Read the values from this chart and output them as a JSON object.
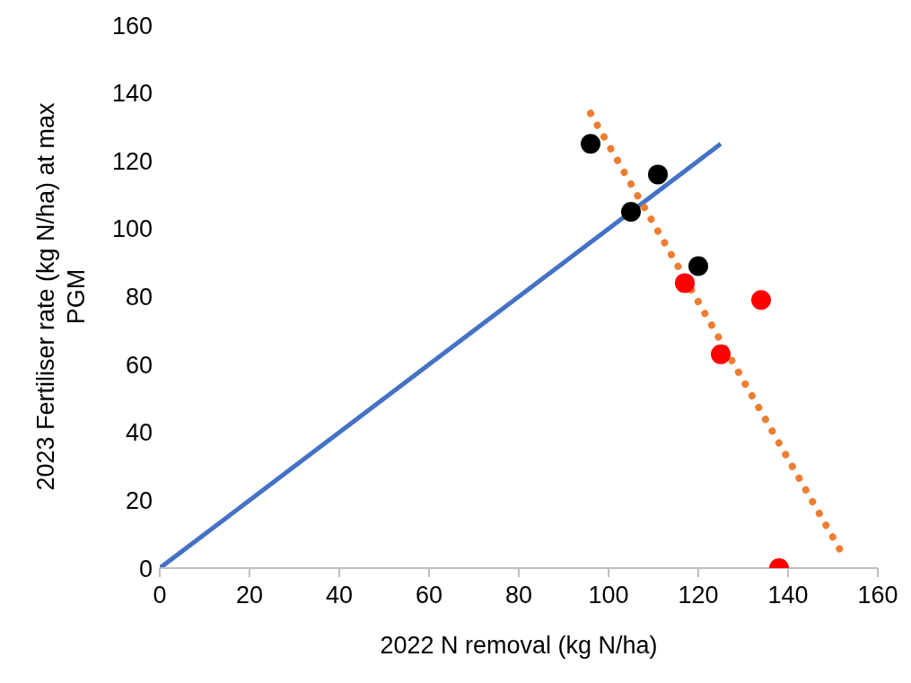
{
  "chart_data": {
    "type": "scatter",
    "xlabel": "2022 N removal (kg N/ha)",
    "ylabel": "2023 Fertiliser rate (kg N/ha) at max PGM",
    "xlim": [
      0,
      160
    ],
    "ylim": [
      0,
      160
    ],
    "xticks": [
      0,
      20,
      40,
      60,
      80,
      100,
      120,
      140,
      160
    ],
    "yticks": [
      0,
      20,
      40,
      60,
      80,
      100,
      120,
      140,
      160
    ],
    "grid": false,
    "marker": "circle",
    "series": [
      {
        "type": "line",
        "color": "#4472c4",
        "x": [
          0,
          125
        ],
        "values": [
          0,
          125
        ],
        "line_style": "solid",
        "marker": "none"
      },
      {
        "type": "line",
        "color": "#ed7d31",
        "x": [
          96,
          152.5
        ],
        "values": [
          134,
          3.3
        ],
        "line_style": "dotted",
        "marker": "none"
      },
      {
        "color": "#000000",
        "x": [
          96,
          111,
          105,
          120
        ],
        "values": [
          125,
          116,
          105,
          89
        ]
      },
      {
        "color": "#ff0000",
        "x": [
          117,
          134,
          125,
          138
        ],
        "values": [
          84,
          79,
          63,
          0
        ]
      }
    ]
  }
}
